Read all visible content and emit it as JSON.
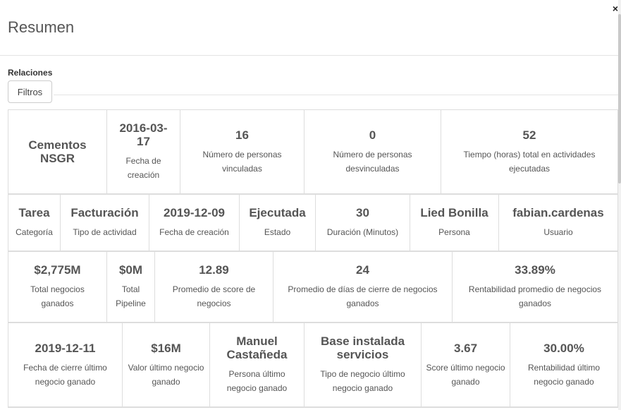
{
  "dialog": {
    "title": "Resumen",
    "close_glyph": "×",
    "section_label": "Relaciones",
    "filter_button": "Filtros"
  },
  "row1": [
    {
      "value": "Cementos NSGR",
      "label": ""
    },
    {
      "value": "2016-03-17",
      "label": "Fecha de creación"
    },
    {
      "value": "16",
      "label": "Número de personas vinculadas"
    },
    {
      "value": "0",
      "label": "Número de personas desvinculadas"
    },
    {
      "value": "52",
      "label": "Tiempo (horas) total en actividades ejecutadas"
    }
  ],
  "row2": [
    {
      "value": "Tarea",
      "label": "Categoría"
    },
    {
      "value": "Facturación",
      "label": "Tipo de actividad"
    },
    {
      "value": "2019-12-09",
      "label": "Fecha de creación"
    },
    {
      "value": "Ejecutada",
      "label": "Estado"
    },
    {
      "value": "30",
      "label": "Duración (Minutos)"
    },
    {
      "value": "Lied Bonilla",
      "label": "Persona"
    },
    {
      "value": "fabian.cardenas",
      "label": "Usuario"
    }
  ],
  "row3": [
    {
      "value": "$2,775M",
      "label": "Total negocios ganados"
    },
    {
      "value": "$0M",
      "label": "Total Pipeline"
    },
    {
      "value": "12.89",
      "label": "Promedio de score de negocios"
    },
    {
      "value": "24",
      "label": "Promedio de días de cierre de negocios ganados"
    },
    {
      "value": "33.89%",
      "label": "Rentabilidad promedio de negocios ganados"
    }
  ],
  "row4": [
    {
      "value": "2019-12-11",
      "label": "Fecha de cierre último negocio ganado"
    },
    {
      "value": "$16M",
      "label": "Valor último negocio ganado"
    },
    {
      "value": "Manuel Castañeda",
      "label": "Persona último negocio ganado"
    },
    {
      "value": "Base instalada servicios",
      "label": "Tipo de negocio último negocio ganado"
    },
    {
      "value": "3.67",
      "label": "Score último negocio ganado"
    },
    {
      "value": "30.00%",
      "label": "Rentabilidad último negocio ganado"
    }
  ]
}
